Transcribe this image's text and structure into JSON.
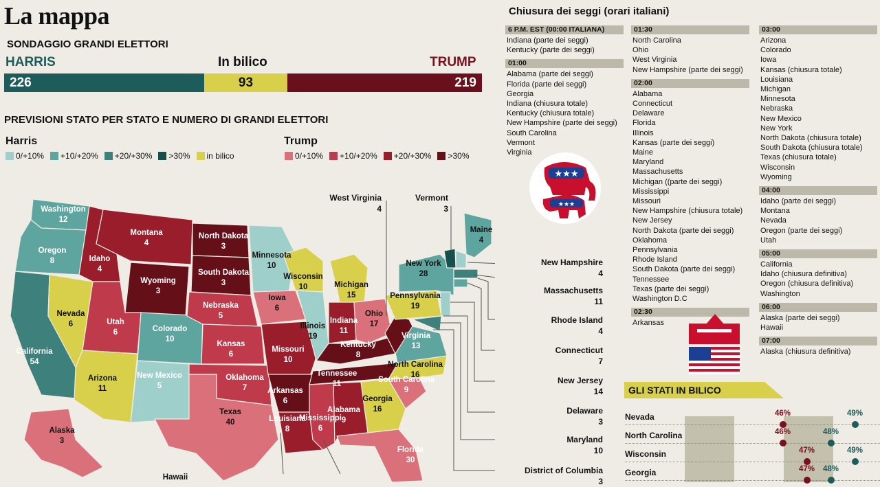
{
  "title": "La mappa",
  "subtitle": "SONDAGGIO GRANDI ELETTORI",
  "summary": {
    "harris_label": "HARRIS",
    "bilico_label": "In bilico",
    "trump_label": "TRUMP",
    "harris_value": "226",
    "bilico_value": "93",
    "trump_value": "219"
  },
  "section_title": "PREVISIONI STATO PER STATO E NUMERO DI GRANDI ELETTORI",
  "legend": {
    "harris_title": "Harris",
    "trump_title": "Trump",
    "harris_items": [
      {
        "label": "0/+10%",
        "color": "#9fcfcb"
      },
      {
        "label": "+10/+20%",
        "color": "#5ea5a0"
      },
      {
        "label": "+20/+30%",
        "color": "#3e807c"
      },
      {
        "label": ">30%",
        "color": "#164f4c"
      },
      {
        "label": "in bilico",
        "color": "#d8cf4b"
      }
    ],
    "trump_items": [
      {
        "label": "0/+10%",
        "color": "#d9707a"
      },
      {
        "label": "+10/+20%",
        "color": "#bf3a4a"
      },
      {
        "label": "+20/+30%",
        "color": "#9a1d2c"
      },
      {
        "label": ">30%",
        "color": "#651018"
      }
    ]
  },
  "map_states": [
    {
      "name": "Washington",
      "votes": "12"
    },
    {
      "name": "Oregon",
      "votes": "8"
    },
    {
      "name": "California",
      "votes": "54"
    },
    {
      "name": "Nevada",
      "votes": "6"
    },
    {
      "name": "Idaho",
      "votes": "4"
    },
    {
      "name": "Montana",
      "votes": "4"
    },
    {
      "name": "Wyoming",
      "votes": "3"
    },
    {
      "name": "Utah",
      "votes": "6"
    },
    {
      "name": "Arizona",
      "votes": "11"
    },
    {
      "name": "Colorado",
      "votes": "10"
    },
    {
      "name": "New Mexico",
      "votes": "5"
    },
    {
      "name": "North Dakota",
      "votes": "3"
    },
    {
      "name": "South Dakota",
      "votes": "3"
    },
    {
      "name": "Nebraska",
      "votes": "5"
    },
    {
      "name": "Kansas",
      "votes": "6"
    },
    {
      "name": "Oklahoma",
      "votes": "7"
    },
    {
      "name": "Texas",
      "votes": "40"
    },
    {
      "name": "Minnesota",
      "votes": "10"
    },
    {
      "name": "Iowa",
      "votes": "6"
    },
    {
      "name": "Missouri",
      "votes": "10"
    },
    {
      "name": "Arkansas",
      "votes": "6"
    },
    {
      "name": "Wisconsin",
      "votes": "10"
    },
    {
      "name": "Illinois",
      "votes": "19"
    },
    {
      "name": "Michigan",
      "votes": "15"
    },
    {
      "name": "Indiana",
      "votes": "11"
    },
    {
      "name": "Ohio",
      "votes": "17"
    },
    {
      "name": "Kentucky",
      "votes": "8"
    },
    {
      "name": "Tennessee",
      "votes": "11"
    },
    {
      "name": "Alabama",
      "votes": "9"
    },
    {
      "name": "Georgia",
      "votes": "16"
    },
    {
      "name": "Florida",
      "votes": "30"
    },
    {
      "name": "South Carolina",
      "votes": "9"
    },
    {
      "name": "North Carolina",
      "votes": "16"
    },
    {
      "name": "Virginia",
      "votes": "13"
    },
    {
      "name": "Pennsylvania",
      "votes": "19"
    },
    {
      "name": "New York",
      "votes": "28"
    },
    {
      "name": "Maine",
      "votes": "4"
    },
    {
      "name": "Alaska",
      "votes": "3"
    },
    {
      "name": "Hawaii",
      "votes": ""
    },
    {
      "name": "Louisiana",
      "votes": "8"
    },
    {
      "name": "Mississippi",
      "votes": "6"
    }
  ],
  "callouts": [
    {
      "name": "West Virginia",
      "votes": "4"
    },
    {
      "name": "Vermont",
      "votes": "3"
    },
    {
      "name": "New Hampshire",
      "votes": "4"
    },
    {
      "name": "Massachusetts",
      "votes": "11"
    },
    {
      "name": "Rhode Island",
      "votes": "4"
    },
    {
      "name": "Connecticut",
      "votes": "7"
    },
    {
      "name": "New Jersey",
      "votes": "14"
    },
    {
      "name": "Delaware",
      "votes": "3"
    },
    {
      "name": "Maryland",
      "votes": "10"
    },
    {
      "name": "District of Columbia",
      "votes": "3"
    }
  ],
  "polls": {
    "title": "Chiusura dei seggi (orari italiani)",
    "col1": [
      {
        "time": "6 P.M. EST (00:00 ITALIANA)",
        "items": [
          "Indiana (parte dei seggi)",
          "Kentucky (parte dei seggi)"
        ]
      },
      {
        "time": "01:00",
        "items": [
          "Alabama (parte dei seggi)",
          "Florida (parte dei seggi)",
          "Georgia",
          "Indiana (chiusura totale)",
          "Kentucky (chiusura totale)",
          "New Hampshire (parte dei seggi)",
          "South Carolina",
          "Vermont",
          "Virginia"
        ]
      }
    ],
    "col2": [
      {
        "time": "01:30",
        "items": [
          "North Carolina",
          "Ohio",
          "West Virginia",
          "New Hampshire (parte dei seggi)"
        ]
      },
      {
        "time": "02:00",
        "items": [
          "Alabama",
          "Connecticut",
          "Delaware",
          "Florida",
          "Illinois",
          "Kansas (parte dei seggi)",
          "Maine",
          "Maryland",
          "Massachusetts",
          "Michigan ((parte dei seggi)",
          "Mississippi",
          "Missouri",
          "New Hampshire (chiusura totale)",
          "New Jersey",
          "North Dakota (parte dei seggi)",
          "Oklahoma",
          "Pennsylvania",
          "Rhode Island",
          "South Dakota (parte dei seggi)",
          "Tennessee",
          "Texas (parte dei seggi)",
          "Washington D.C"
        ]
      },
      {
        "time": "02:30",
        "items": [
          "Arkansas"
        ]
      }
    ],
    "col3": [
      {
        "time": "03:00",
        "items": [
          "Arizona",
          "Colorado",
          "Iowa",
          "Kansas (chiusura totale)",
          "Louisiana",
          "Michigan",
          "Minnesota",
          "Nebraska",
          "New Mexico",
          "New York",
          "North Dakota (chiusura totale)",
          "South Dakota (chiusura totale)",
          "Texas (chiusura totale)",
          "Wisconsin",
          "Wyoming"
        ]
      },
      {
        "time": "04:00",
        "items": [
          "Idaho (parte dei seggi)",
          "Montana",
          "Nevada",
          "Oregon (parte dei seggi)",
          "Utah"
        ]
      },
      {
        "time": "05:00",
        "items": [
          "California",
          "Idaho (chiusura definitiva)",
          "Oregon (chiusura definitiva)",
          "Washington"
        ]
      },
      {
        "time": "06:00",
        "items": [
          "Alaska (parte dei seggi)",
          "Hawaii"
        ]
      },
      {
        "time": "07:00",
        "items": [
          "Alaska (chiusura definitiva)"
        ]
      }
    ]
  },
  "bilico": {
    "title": "GLI STATI IN BILICO",
    "rows": [
      {
        "state": "Nevada",
        "trump": "46%",
        "harris": "49%",
        "trump_value": 46,
        "harris_value": 49
      },
      {
        "state": "North Carolina",
        "trump": "46%",
        "harris": "48%",
        "trump_value": 46,
        "harris_value": 48
      },
      {
        "state": "Wisconsin",
        "trump": "47%",
        "harris": "49%",
        "trump_value": 47,
        "harris_value": 49
      },
      {
        "state": "Georgia",
        "trump": "47%",
        "harris": "48%",
        "trump_value": 47,
        "harris_value": 48
      }
    ]
  },
  "colors": {
    "harris": "#1d5c5a",
    "trump": "#6a0f1c",
    "bilico": "#d8cf4b"
  }
}
